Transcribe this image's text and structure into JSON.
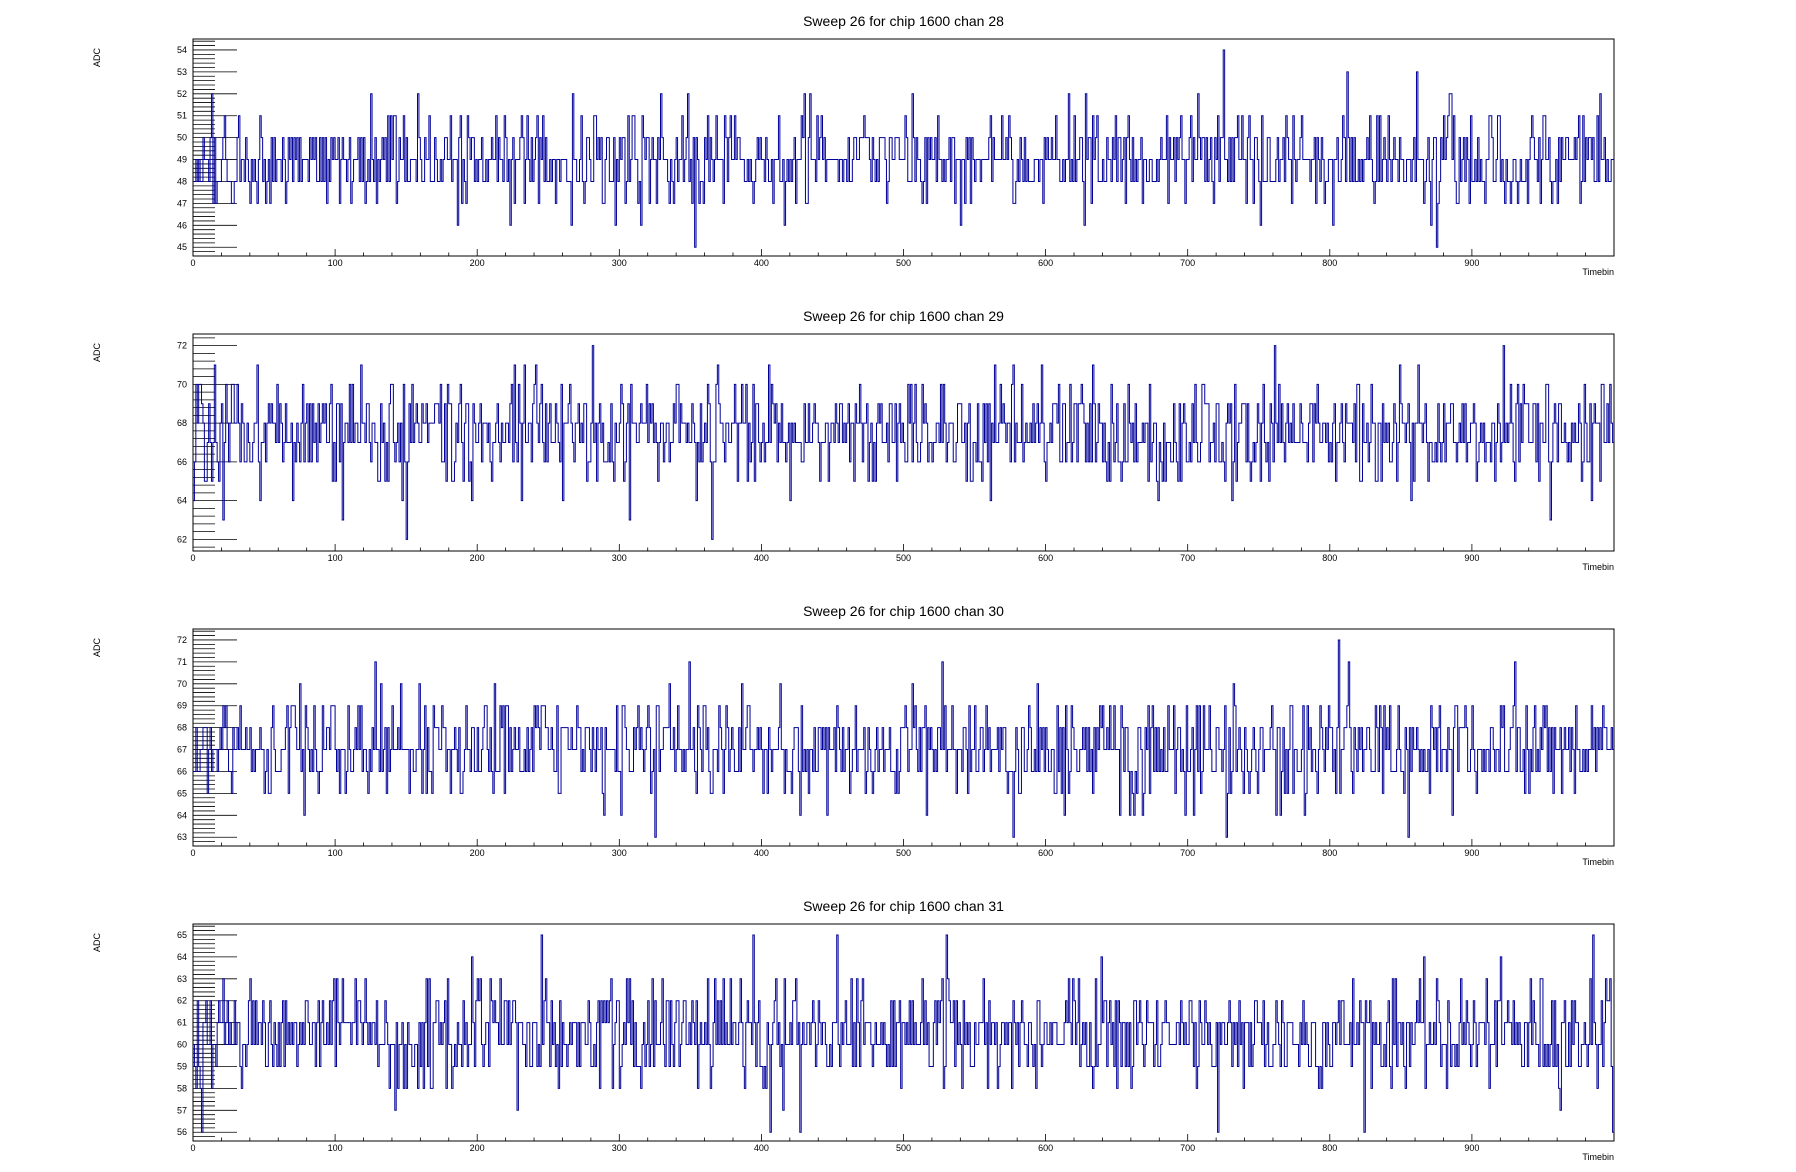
{
  "chart_data": [
    {
      "type": "line",
      "title": "Sweep 26 for chip 1600 chan 28",
      "xlabel": "Timebin",
      "ylabel": "ADC",
      "xlim": [
        0,
        1000
      ],
      "ylim": [
        44.6,
        54.5
      ],
      "x_ticks": [
        "0",
        "100",
        "200",
        "300",
        "400",
        "500",
        "600",
        "700",
        "800",
        "900"
      ],
      "y_ticks": [
        "45",
        "46",
        "47",
        "48",
        "49",
        "50",
        "51",
        "52",
        "53",
        "54"
      ],
      "series": [
        {
          "mean": 49,
          "sd": 1.1,
          "min": 45,
          "max": 54,
          "seed": 28,
          "spikes": [
            [
              13,
              52
            ],
            [
              353,
              45
            ],
            [
              725,
              54
            ],
            [
              812,
              53
            ],
            [
              990,
              52
            ]
          ]
        }
      ]
    },
    {
      "type": "line",
      "title": "Sweep 26 for chip 1600 chan 29",
      "xlabel": "Timebin",
      "ylabel": "ADC",
      "xlim": [
        0,
        1000
      ],
      "ylim": [
        61.4,
        72.6
      ],
      "x_ticks": [
        "0",
        "100",
        "200",
        "300",
        "400",
        "500",
        "600",
        "700",
        "800",
        "900"
      ],
      "y_ticks": [
        "62",
        "64",
        "66",
        "68",
        "70",
        "72"
      ],
      "series": [
        {
          "mean": 67.5,
          "sd": 1.4,
          "min": 62,
          "max": 72,
          "seed": 29,
          "spikes": [
            [
              150,
              62
            ],
            [
              365,
              62
            ],
            [
              761,
              72
            ],
            [
              922,
              72
            ],
            [
              955,
              63
            ]
          ]
        }
      ]
    },
    {
      "type": "line",
      "title": "Sweep 26 for chip 1600 chan 30",
      "xlabel": "Timebin",
      "ylabel": "ADC",
      "xlim": [
        0,
        1000
      ],
      "ylim": [
        62.6,
        72.5
      ],
      "x_ticks": [
        "0",
        "100",
        "200",
        "300",
        "400",
        "500",
        "600",
        "700",
        "800",
        "900"
      ],
      "y_ticks": [
        "63",
        "64",
        "65",
        "66",
        "67",
        "68",
        "69",
        "70",
        "71",
        "72"
      ],
      "series": [
        {
          "mean": 67,
          "sd": 1.2,
          "min": 63,
          "max": 72,
          "seed": 30,
          "spikes": [
            [
              325,
              63
            ],
            [
              577,
              63
            ],
            [
              806,
              72
            ],
            [
              128,
              71
            ],
            [
              527,
              71
            ],
            [
              930,
              71
            ]
          ]
        }
      ]
    },
    {
      "type": "line",
      "title": "Sweep 26 for chip 1600 chan 31",
      "xlabel": "Timebin",
      "ylabel": "ADC",
      "xlim": [
        0,
        1000
      ],
      "ylim": [
        55.6,
        65.5
      ],
      "x_ticks": [
        "0",
        "100",
        "200",
        "300",
        "400",
        "500",
        "600",
        "700",
        "800",
        "900"
      ],
      "y_ticks": [
        "56",
        "57",
        "58",
        "59",
        "60",
        "61",
        "62",
        "63",
        "64",
        "65"
      ],
      "series": [
        {
          "mean": 60.5,
          "sd": 1.2,
          "min": 56,
          "max": 65,
          "seed": 31,
          "spikes": [
            [
              245,
              65
            ],
            [
              394,
              65
            ],
            [
              406,
              56
            ],
            [
              427,
              56
            ],
            [
              453,
              65
            ],
            [
              530,
              65
            ],
            [
              721,
              56
            ],
            [
              985,
              65
            ]
          ]
        }
      ]
    }
  ]
}
